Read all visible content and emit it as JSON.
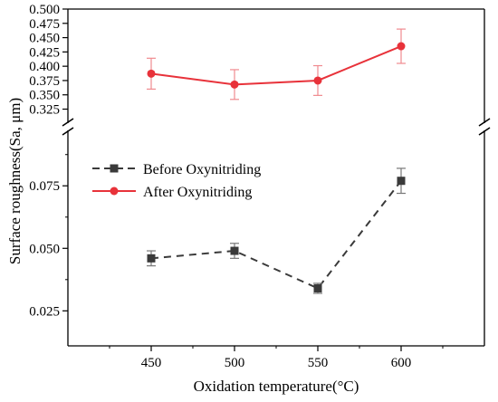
{
  "chart_data": {
    "type": "line",
    "broken_y_axis": true,
    "xlabel": "Oxidation temperature(°C)",
    "ylabel": "Surface roughness(Sa, μm)",
    "x": [
      450,
      500,
      550,
      600
    ],
    "x_ticks": [
      "450",
      "500",
      "550",
      "600"
    ],
    "xlim": [
      400,
      650
    ],
    "upper_panel": {
      "ylim": [
        0.31,
        0.5
      ],
      "y_ticks": [
        "0.325",
        "0.350",
        "0.375",
        "0.400",
        "0.425",
        "0.450",
        "0.475",
        "0.500"
      ],
      "y_tick_values": [
        0.325,
        0.35,
        0.375,
        0.4,
        0.425,
        0.45,
        0.475,
        0.5
      ]
    },
    "lower_panel": {
      "ylim": [
        0.011,
        0.095
      ],
      "y_ticks": [
        "0.025",
        "0.050",
        "0.075"
      ],
      "y_tick_values": [
        0.025,
        0.05,
        0.075
      ]
    },
    "series": [
      {
        "name": "Before Oxynitriding",
        "panel": "lower",
        "values": [
          0.046,
          0.049,
          0.034,
          0.077
        ],
        "errors": [
          0.003,
          0.003,
          0.002,
          0.005
        ],
        "color": "#3a3a3a",
        "line_style": "dashed",
        "marker": "square"
      },
      {
        "name": "After Oxynitriding",
        "panel": "upper",
        "values": [
          0.387,
          0.368,
          0.375,
          0.435
        ],
        "errors": [
          0.027,
          0.026,
          0.026,
          0.03
        ],
        "color": "#e8323a",
        "line_style": "solid",
        "marker": "circle"
      }
    ],
    "legend_position": "middle-left"
  }
}
